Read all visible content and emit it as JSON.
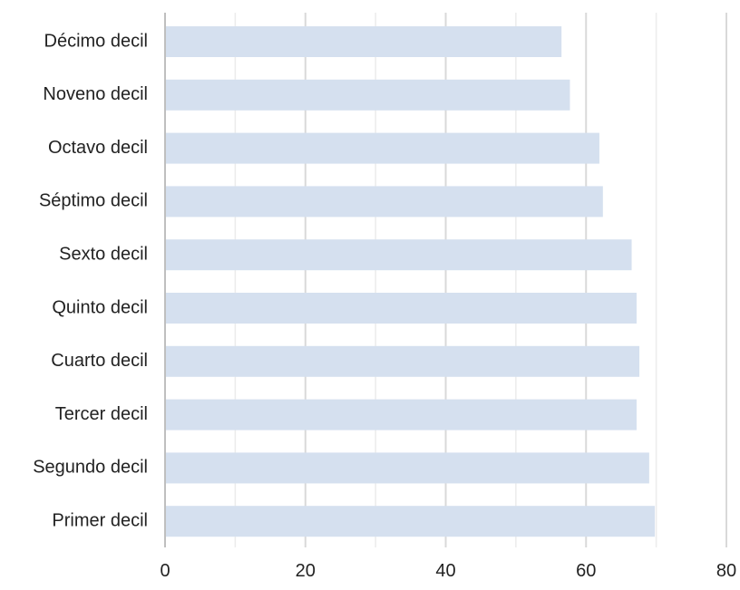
{
  "chart_data": {
    "type": "bar",
    "orientation": "horizontal",
    "title": "",
    "categories": [
      "Décimo decil",
      "Noveno decil",
      "Octavo decil",
      "Séptimo decil",
      "Sexto decil",
      "Quinto decil",
      "Cuarto decil",
      "Tercer decil",
      "Segundo decil",
      "Primer decil"
    ],
    "values": [
      56.5,
      57.7,
      61.9,
      62.4,
      66.5,
      67.2,
      67.6,
      67.2,
      69.0,
      69.8
    ],
    "x_ticks": [
      "0",
      "20",
      "40",
      "60",
      "80"
    ],
    "xlim": [
      0,
      80
    ],
    "minor_gridlines": [
      10,
      30,
      50,
      70
    ],
    "xlabel": "",
    "ylabel": "",
    "grid": true,
    "legend": "none",
    "colors": {
      "bar": "#d5e0ef",
      "major_grid": "#d9d9d9",
      "minor_grid": "#ececec",
      "axis": "#bfbfbf",
      "text": "#222222"
    }
  }
}
